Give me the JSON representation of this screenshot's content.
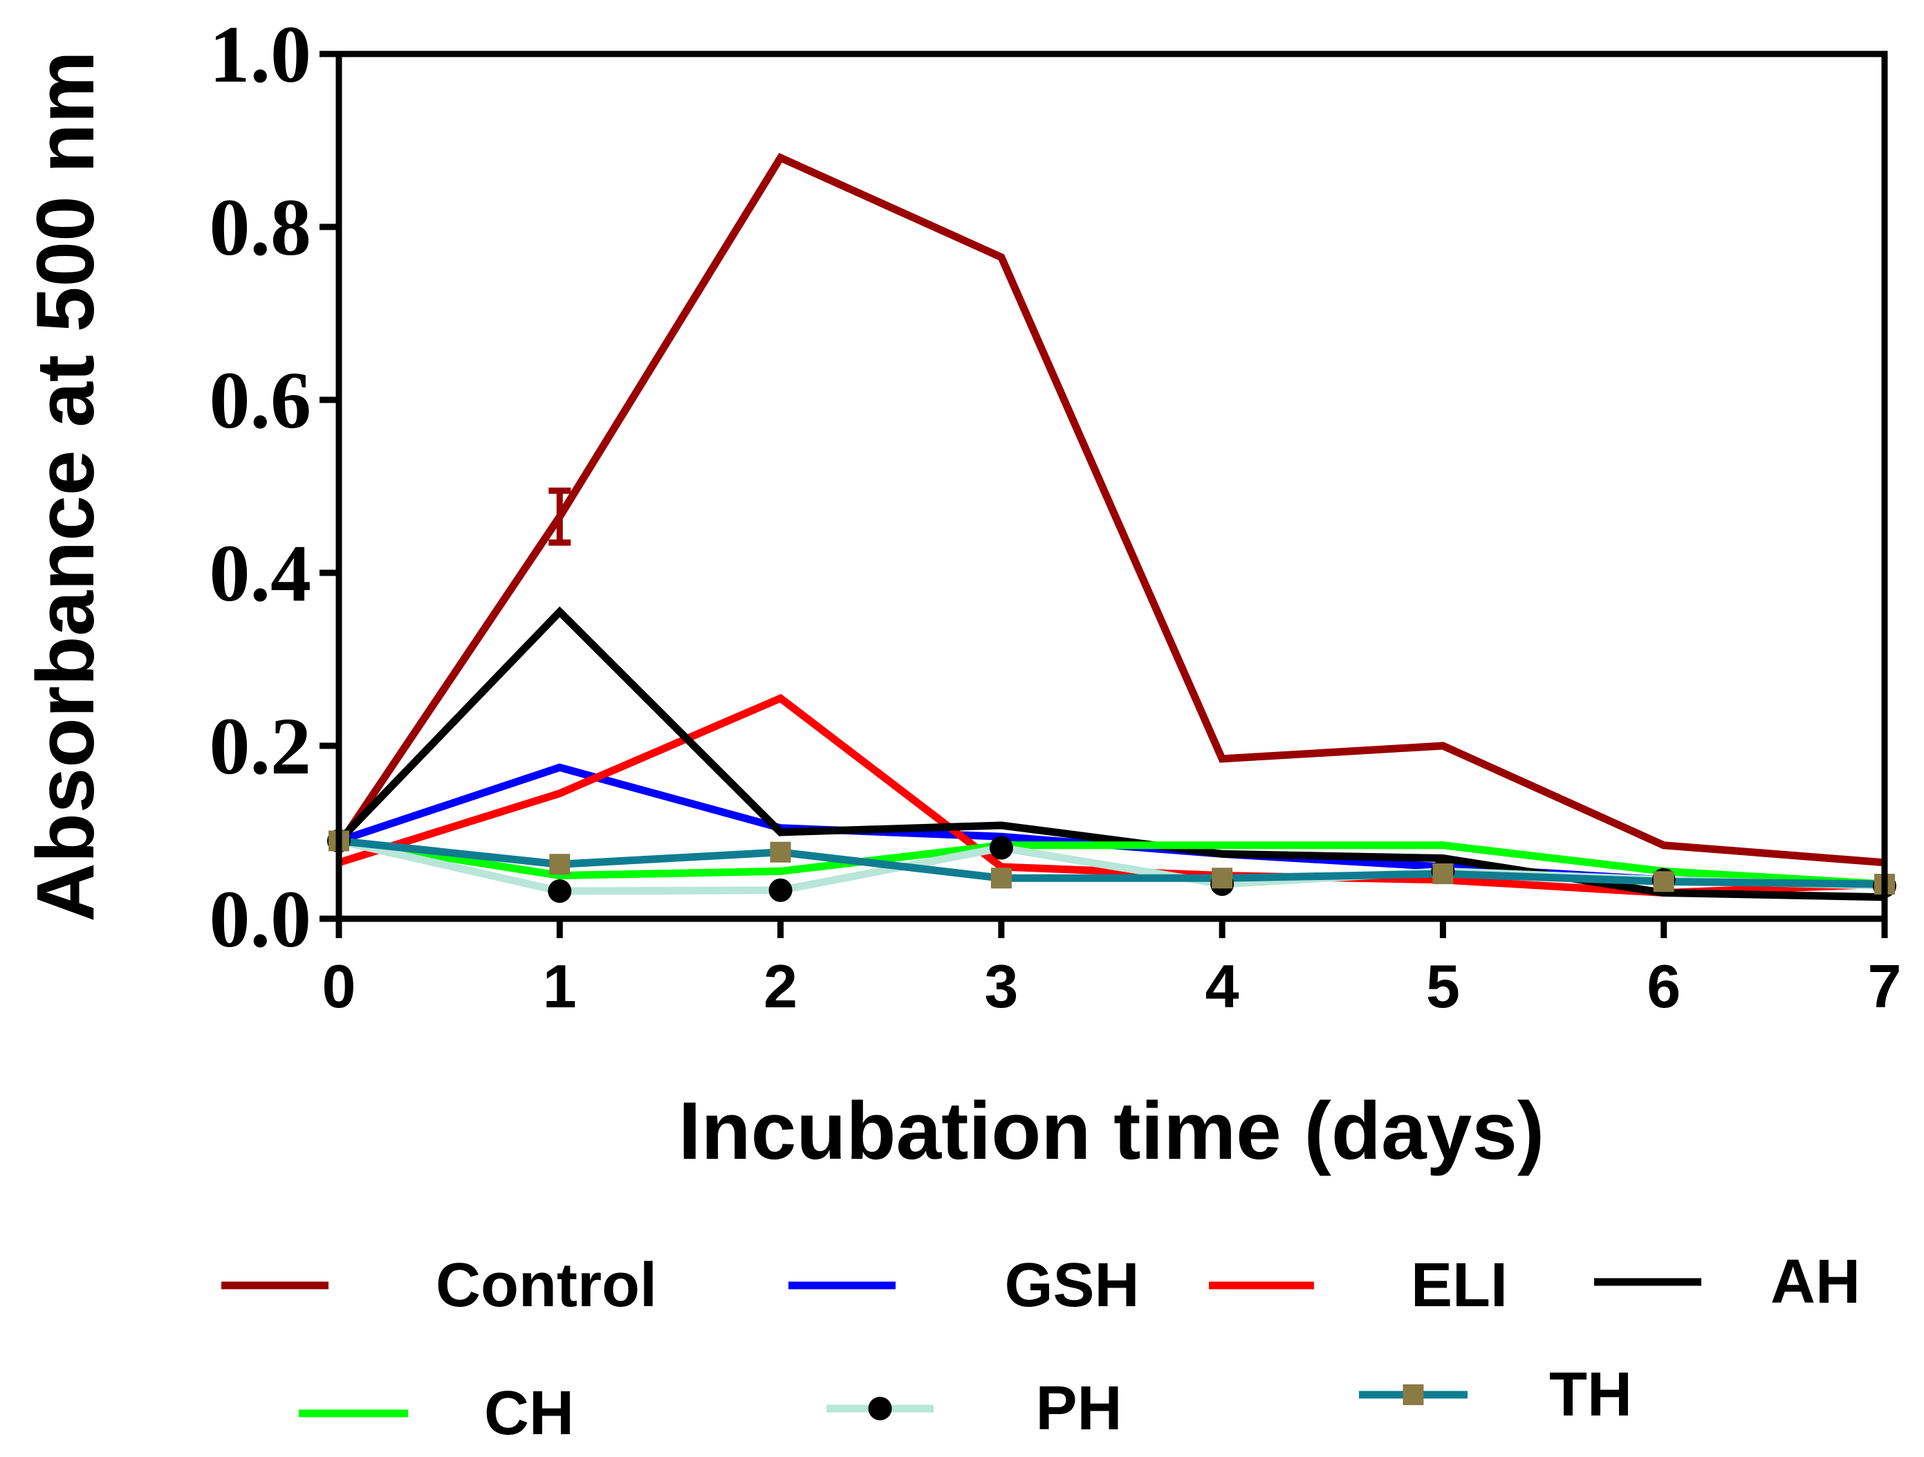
{
  "chart_data": {
    "type": "line",
    "title": "",
    "xlabel": "Incubation time (days)",
    "ylabel": "Absorbance at 500 nm",
    "xlim": [
      0,
      7
    ],
    "ylim": [
      0,
      1.0
    ],
    "x": [
      0,
      1,
      2,
      3,
      4,
      5,
      6,
      7
    ],
    "x_tick_labels": [
      "0",
      "1",
      "2",
      "3",
      "4",
      "5",
      "6",
      "7"
    ],
    "y_ticks": [
      0.0,
      0.2,
      0.4,
      0.6,
      0.8,
      1.0
    ],
    "y_tick_labels": [
      "0.0",
      "0.2",
      "0.4",
      "0.6",
      "0.8",
      "1.0"
    ],
    "grid": false,
    "legend_position": "bottom",
    "series": [
      {
        "name": "Control",
        "color": "#990000",
        "marker": "none",
        "values": [
          0.085,
          0.465,
          0.88,
          0.765,
          0.185,
          0.2,
          0.085,
          0.065
        ],
        "error_bars": [
          0,
          0.03,
          0,
          0,
          0,
          0,
          0,
          0
        ]
      },
      {
        "name": "GSH",
        "color": "#0000ff",
        "marker": "none",
        "values": [
          0.09,
          0.175,
          0.105,
          0.095,
          0.075,
          0.06,
          0.045,
          0.04
        ]
      },
      {
        "name": "ELI",
        "color": "#ff0000",
        "marker": "none",
        "values": [
          0.065,
          0.145,
          0.255,
          0.06,
          0.05,
          0.045,
          0.03,
          0.04
        ]
      },
      {
        "name": "AH",
        "color": "#000000",
        "marker": "none",
        "values": [
          0.09,
          0.355,
          0.1,
          0.108,
          0.075,
          0.07,
          0.03,
          0.025
        ]
      },
      {
        "name": "CH",
        "color": "#00ff00",
        "marker": "none",
        "values": [
          0.09,
          0.05,
          0.055,
          0.085,
          0.085,
          0.085,
          0.055,
          0.04
        ]
      },
      {
        "name": "PH",
        "color": "#b8e6d8",
        "marker": "circle",
        "marker_color": "#000000",
        "values": [
          0.09,
          0.032,
          0.033,
          0.082,
          0.04,
          0.055,
          0.045,
          0.038
        ]
      },
      {
        "name": "TH",
        "color": "#0f7d91",
        "marker": "square",
        "marker_color": "#8a7a44",
        "values": [
          0.09,
          0.063,
          0.077,
          0.047,
          0.047,
          0.052,
          0.043,
          0.04
        ]
      }
    ]
  }
}
